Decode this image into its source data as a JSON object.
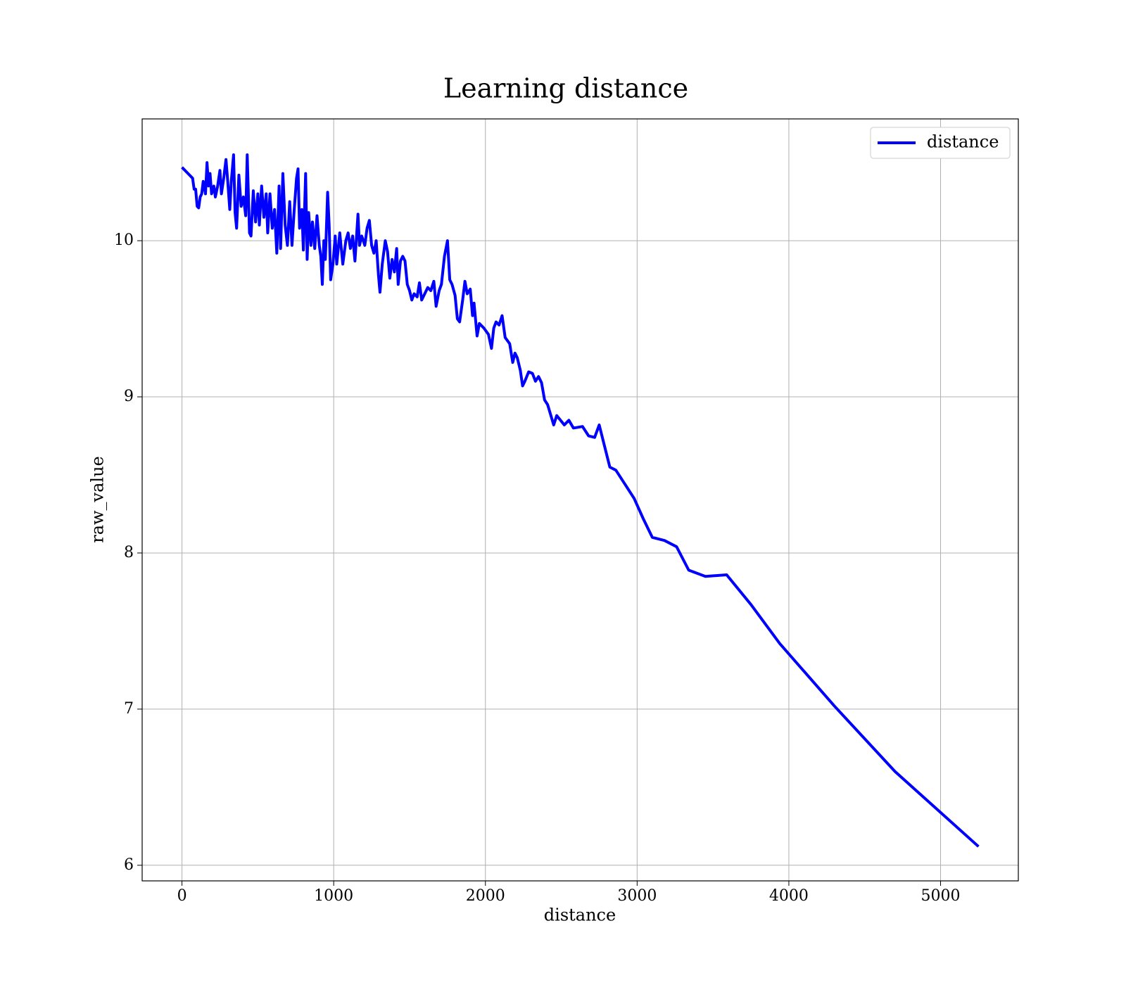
{
  "chart_data": {
    "type": "line",
    "title": "Learning distance",
    "xlabel": "distance",
    "ylabel": "raw_value",
    "xlim": [
      -262.5,
      5512.5
    ],
    "ylim": [
      5.9,
      10.78
    ],
    "xticks": [
      0,
      1000,
      2000,
      3000,
      4000,
      5000
    ],
    "yticks": [
      6,
      7,
      8,
      9,
      10
    ],
    "grid": true,
    "legend": "upper right",
    "x": [
      0,
      50,
      70,
      80,
      90,
      100,
      110,
      120,
      130,
      140,
      155,
      165,
      175,
      185,
      195,
      210,
      220,
      235,
      250,
      260,
      275,
      290,
      300,
      315,
      325,
      340,
      350,
      360,
      375,
      390,
      405,
      420,
      430,
      445,
      455,
      470,
      485,
      500,
      510,
      525,
      540,
      555,
      565,
      580,
      595,
      610,
      625,
      640,
      650,
      665,
      680,
      695,
      710,
      725,
      740,
      755,
      765,
      775,
      790,
      800,
      815,
      825,
      835,
      850,
      860,
      875,
      890,
      905,
      915,
      925,
      935,
      945,
      960,
      970,
      980,
      995,
      1010,
      1020,
      1040,
      1060,
      1080,
      1095,
      1110,
      1125,
      1140,
      1160,
      1170,
      1185,
      1205,
      1220,
      1235,
      1250,
      1265,
      1280,
      1295,
      1305,
      1320,
      1340,
      1355,
      1370,
      1385,
      1400,
      1415,
      1425,
      1440,
      1455,
      1470,
      1485,
      1500,
      1515,
      1530,
      1550,
      1565,
      1580,
      1600,
      1620,
      1640,
      1660,
      1675,
      1695,
      1710,
      1730,
      1750,
      1765,
      1780,
      1800,
      1815,
      1830,
      1850,
      1865,
      1880,
      1900,
      1915,
      1925,
      1945,
      1960,
      1990,
      2020,
      2040,
      2055,
      2070,
      2090,
      2110,
      2130,
      2160,
      2180,
      2195,
      2210,
      2230,
      2245,
      2260,
      2285,
      2310,
      2330,
      2350,
      2370,
      2390,
      2410,
      2450,
      2470,
      2520,
      2550,
      2580,
      2640,
      2680,
      2720,
      2750,
      2820,
      2860,
      2980,
      3040,
      3100,
      3180,
      3260,
      3340,
      3450,
      3590,
      3750,
      3940,
      4300,
      4700,
      5250
    ],
    "series": [
      {
        "name": "distance",
        "color": "#0000ff",
        "values": [
          10.47,
          10.42,
          10.4,
          10.33,
          10.33,
          10.22,
          10.21,
          10.28,
          10.3,
          10.38,
          10.3,
          10.5,
          10.35,
          10.43,
          10.3,
          10.35,
          10.28,
          10.35,
          10.45,
          10.3,
          10.4,
          10.52,
          10.4,
          10.2,
          10.38,
          10.55,
          10.18,
          10.08,
          10.42,
          10.22,
          10.28,
          10.16,
          10.55,
          10.05,
          10.03,
          10.32,
          10.12,
          10.3,
          10.1,
          10.35,
          10.15,
          10.3,
          10.05,
          10.3,
          10.08,
          10.2,
          9.92,
          10.35,
          9.95,
          10.43,
          10.1,
          9.97,
          10.25,
          9.97,
          10.2,
          10.4,
          10.46,
          10.08,
          10.2,
          9.94,
          10.43,
          9.88,
          10.18,
          9.97,
          10.12,
          9.95,
          10.16,
          9.97,
          9.9,
          9.72,
          10.0,
          9.88,
          10.31,
          10.1,
          9.75,
          9.85,
          10.03,
          9.85,
          10.05,
          9.85,
          10.0,
          10.05,
          9.95,
          10.03,
          9.87,
          10.17,
          9.97,
          10.03,
          9.97,
          10.08,
          10.13,
          9.97,
          9.92,
          10.0,
          9.78,
          9.67,
          9.85,
          10.0,
          9.93,
          9.76,
          9.88,
          9.8,
          9.95,
          9.72,
          9.87,
          9.9,
          9.87,
          9.72,
          9.68,
          9.62,
          9.66,
          9.64,
          9.73,
          9.62,
          9.66,
          9.7,
          9.68,
          9.74,
          9.58,
          9.68,
          9.72,
          9.9,
          10.0,
          9.75,
          9.72,
          9.65,
          9.5,
          9.48,
          9.62,
          9.74,
          9.66,
          9.69,
          9.52,
          9.6,
          9.39,
          9.47,
          9.44,
          9.4,
          9.31,
          9.44,
          9.48,
          9.46,
          9.52,
          9.38,
          9.34,
          9.22,
          9.28,
          9.25,
          9.17,
          9.07,
          9.1,
          9.16,
          9.15,
          9.1,
          9.13,
          9.09,
          8.98,
          8.95,
          8.82,
          8.88,
          8.82,
          8.85,
          8.8,
          8.81,
          8.75,
          8.74,
          8.82,
          8.55,
          8.53,
          8.35,
          8.22,
          8.1,
          8.08,
          8.04,
          7.89,
          7.85,
          7.86,
          7.67,
          7.42,
          7.02,
          6.6,
          6.12
        ]
      }
    ]
  }
}
